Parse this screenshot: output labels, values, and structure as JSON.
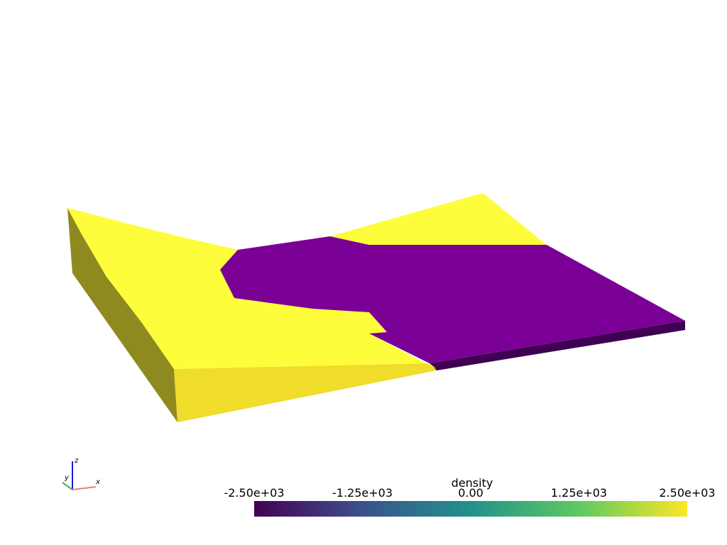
{
  "colorbar": {
    "title": "density",
    "range": [
      -2500,
      2500
    ],
    "ticks": [
      {
        "value": -2500,
        "label": "-2.50e+03"
      },
      {
        "value": -1250,
        "label": "-1.25e+03"
      },
      {
        "value": 0,
        "label": "0.00"
      },
      {
        "value": 1250,
        "label": "1.25e+03"
      },
      {
        "value": 2500,
        "label": "2.50e+03"
      }
    ]
  },
  "axes": {
    "x": "x",
    "y": "y",
    "z": "z"
  }
}
